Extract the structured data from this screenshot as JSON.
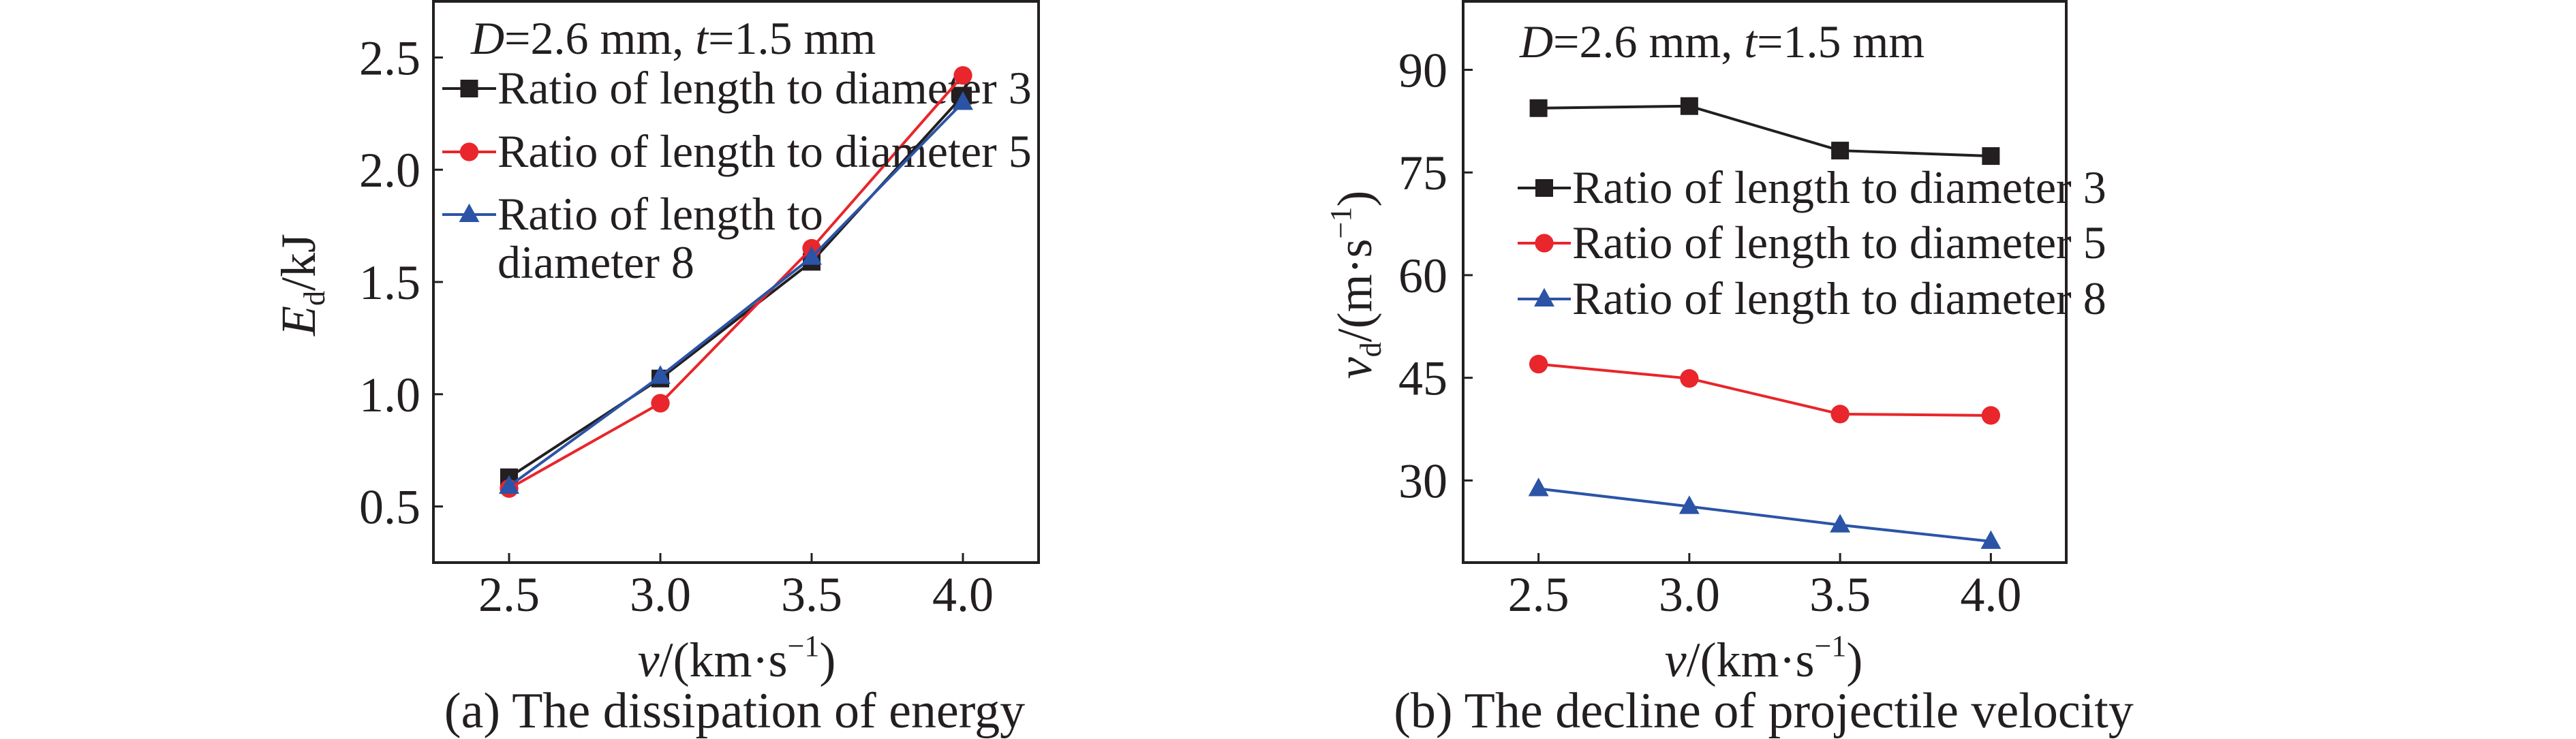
{
  "chart_data": [
    {
      "type": "line",
      "caption": "(a) The dissipation of energy",
      "annotation": {
        "D_symbol": "D",
        "D_value": "=2.6 mm, ",
        "t_symbol": "t",
        "t_value": "=1.5 mm"
      },
      "xlabel": {
        "symbol": "v",
        "unit": "/(km·s",
        "sup": "−1",
        "close": ")"
      },
      "ylabel": {
        "symbol": "E",
        "sub": "d",
        "unit": "/kJ"
      },
      "x": [
        2.5,
        3.0,
        3.5,
        4.0
      ],
      "xticks": [
        "2.5",
        "3.0",
        "3.5",
        "4.0"
      ],
      "yticks": [
        "0.5",
        "1.0",
        "1.5",
        "2.0",
        "2.5"
      ],
      "xlim": [
        2.25,
        4.25
      ],
      "ylim": [
        0.25,
        2.75
      ],
      "grid": false,
      "legend_placement": "top-left",
      "series": [
        {
          "name": "Ratio of length to diameter 3",
          "marker": "square",
          "color": "#231f20",
          "values": [
            0.63,
            1.07,
            1.59,
            2.33
          ]
        },
        {
          "name": "Ratio of length to diameter 5",
          "marker": "circle",
          "color": "#e8262b",
          "values": [
            0.58,
            0.96,
            1.65,
            2.42
          ]
        },
        {
          "name": "Ratio of length to diameter 8",
          "name_lines": [
            "Ratio of length to",
            "diameter 8"
          ],
          "marker": "triangle",
          "color": "#2b54a6",
          "values": [
            0.59,
            1.08,
            1.61,
            2.3
          ]
        }
      ]
    },
    {
      "type": "line",
      "caption": "(b) The decline of projectile velocity",
      "annotation": {
        "D_symbol": "D",
        "D_value": "=2.6 mm, ",
        "t_symbol": "t",
        "t_value": "=1.5 mm"
      },
      "xlabel": {
        "symbol": "v",
        "unit": "/(km·s",
        "sup": "−1",
        "close": ")"
      },
      "ylabel": {
        "symbol": "v",
        "sub": "d",
        "unit": "/(m·s",
        "sup": "−1",
        "close": ")"
      },
      "x": [
        2.5,
        3.0,
        3.5,
        4.0
      ],
      "xticks": [
        "2.5",
        "3.0",
        "3.5",
        "4.0"
      ],
      "yticks": [
        "30",
        "45",
        "60",
        "75",
        "90"
      ],
      "xlim": [
        2.25,
        4.25
      ],
      "ylim": [
        18,
        100
      ],
      "grid": false,
      "legend_placement": "center-right",
      "series": [
        {
          "name": "Ratio of length to diameter 3",
          "marker": "square",
          "color": "#231f20",
          "values": [
            84.4,
            84.7,
            78.2,
            77.4
          ]
        },
        {
          "name": "Ratio of length to diameter 5",
          "marker": "circle",
          "color": "#e8262b",
          "values": [
            47.0,
            44.9,
            39.7,
            39.5
          ]
        },
        {
          "name": "Ratio of length to diameter 8",
          "marker": "triangle",
          "color": "#2b54a6",
          "values": [
            28.8,
            26.2,
            23.5,
            21.1
          ]
        }
      ]
    }
  ]
}
